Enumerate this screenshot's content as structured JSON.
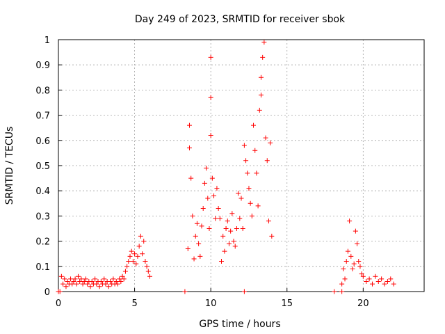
{
  "chart_data": {
    "type": "scatter",
    "title": "Day 249 of 2023, SRMTID for receiver sbok",
    "xlabel": "GPS time / hours",
    "ylabel": "SRMTID / TECUs",
    "xlim": [
      0,
      24
    ],
    "ylim": [
      0,
      1
    ],
    "x_ticks": [
      "0",
      "5",
      "10",
      "15",
      "20"
    ],
    "x_tick_values": [
      0,
      5,
      10,
      15,
      20
    ],
    "y_ticks": [
      "0",
      "0.1",
      "0.2",
      "0.3",
      "0.4",
      "0.5",
      "0.6",
      "0.7",
      "0.8",
      "0.9",
      "1"
    ],
    "y_tick_values": [
      0,
      0.1,
      0.2,
      0.3,
      0.4,
      0.5,
      0.6,
      0.7,
      0.8,
      0.9,
      1
    ],
    "grid": true,
    "marker": "+",
    "color": "#ff0000",
    "series": [
      {
        "name": "SRMTID",
        "points": [
          [
            0.1,
            0.0
          ],
          [
            0.2,
            0.06
          ],
          [
            0.3,
            0.03
          ],
          [
            0.4,
            0.05
          ],
          [
            0.5,
            0.02
          ],
          [
            0.6,
            0.04
          ],
          [
            0.7,
            0.03
          ],
          [
            0.8,
            0.05
          ],
          [
            0.9,
            0.03
          ],
          [
            1.0,
            0.04
          ],
          [
            1.1,
            0.05
          ],
          [
            1.2,
            0.03
          ],
          [
            1.3,
            0.06
          ],
          [
            1.4,
            0.04
          ],
          [
            1.5,
            0.05
          ],
          [
            1.6,
            0.03
          ],
          [
            1.7,
            0.04
          ],
          [
            1.8,
            0.05
          ],
          [
            1.9,
            0.03
          ],
          [
            2.0,
            0.04
          ],
          [
            2.1,
            0.02
          ],
          [
            2.2,
            0.04
          ],
          [
            2.3,
            0.03
          ],
          [
            2.4,
            0.05
          ],
          [
            2.5,
            0.03
          ],
          [
            2.6,
            0.04
          ],
          [
            2.7,
            0.02
          ],
          [
            2.8,
            0.04
          ],
          [
            2.9,
            0.03
          ],
          [
            3.0,
            0.05
          ],
          [
            3.1,
            0.03
          ],
          [
            3.2,
            0.04
          ],
          [
            3.3,
            0.02
          ],
          [
            3.4,
            0.04
          ],
          [
            3.5,
            0.03
          ],
          [
            3.6,
            0.05
          ],
          [
            3.7,
            0.03
          ],
          [
            3.8,
            0.04
          ],
          [
            3.9,
            0.03
          ],
          [
            4.0,
            0.05
          ],
          [
            4.1,
            0.04
          ],
          [
            4.2,
            0.06
          ],
          [
            4.3,
            0.05
          ],
          [
            4.4,
            0.08
          ],
          [
            4.5,
            0.1
          ],
          [
            4.6,
            0.12
          ],
          [
            4.7,
            0.14
          ],
          [
            4.8,
            0.16
          ],
          [
            4.9,
            0.12
          ],
          [
            5.0,
            0.15
          ],
          [
            5.1,
            0.11
          ],
          [
            5.2,
            0.14
          ],
          [
            5.3,
            0.18
          ],
          [
            5.4,
            0.22
          ],
          [
            5.5,
            0.15
          ],
          [
            5.6,
            0.2
          ],
          [
            5.7,
            0.12
          ],
          [
            5.8,
            0.1
          ],
          [
            5.9,
            0.08
          ],
          [
            6.0,
            0.06
          ],
          [
            0.0,
            0.0
          ],
          [
            8.3,
            0.0
          ],
          [
            12.2,
            0.0
          ],
          [
            18.1,
            0.0
          ],
          [
            18.6,
            0.0
          ],
          [
            8.5,
            0.17
          ],
          [
            8.6,
            0.66
          ],
          [
            8.6,
            0.57
          ],
          [
            8.7,
            0.45
          ],
          [
            8.8,
            0.3
          ],
          [
            8.9,
            0.13
          ],
          [
            9.0,
            0.22
          ],
          [
            9.1,
            0.27
          ],
          [
            9.2,
            0.19
          ],
          [
            9.3,
            0.14
          ],
          [
            9.4,
            0.26
          ],
          [
            9.5,
            0.33
          ],
          [
            9.6,
            0.43
          ],
          [
            9.7,
            0.49
          ],
          [
            9.8,
            0.37
          ],
          [
            9.9,
            0.25
          ],
          [
            10.0,
            0.77
          ],
          [
            10.0,
            0.93
          ],
          [
            10.0,
            0.62
          ],
          [
            10.1,
            0.45
          ],
          [
            10.2,
            0.38
          ],
          [
            10.3,
            0.29
          ],
          [
            10.4,
            0.41
          ],
          [
            10.5,
            0.33
          ],
          [
            10.6,
            0.29
          ],
          [
            10.7,
            0.12
          ],
          [
            10.8,
            0.22
          ],
          [
            10.9,
            0.16
          ],
          [
            11.0,
            0.25
          ],
          [
            11.1,
            0.28
          ],
          [
            11.2,
            0.19
          ],
          [
            11.3,
            0.24
          ],
          [
            11.4,
            0.31
          ],
          [
            11.5,
            0.2
          ],
          [
            11.6,
            0.18
          ],
          [
            11.7,
            0.25
          ],
          [
            11.8,
            0.39
          ],
          [
            11.9,
            0.29
          ],
          [
            12.0,
            0.37
          ],
          [
            12.1,
            0.25
          ],
          [
            12.2,
            0.58
          ],
          [
            12.3,
            0.52
          ],
          [
            12.4,
            0.47
          ],
          [
            12.5,
            0.41
          ],
          [
            12.6,
            0.35
          ],
          [
            12.7,
            0.3
          ],
          [
            12.8,
            0.66
          ],
          [
            12.9,
            0.56
          ],
          [
            13.0,
            0.47
          ],
          [
            13.1,
            0.34
          ],
          [
            13.2,
            0.72
          ],
          [
            13.3,
            0.78
          ],
          [
            13.3,
            0.85
          ],
          [
            13.4,
            0.93
          ],
          [
            13.5,
            0.99
          ],
          [
            13.6,
            0.61
          ],
          [
            13.7,
            0.52
          ],
          [
            13.8,
            0.28
          ],
          [
            13.9,
            0.59
          ],
          [
            14.0,
            0.22
          ],
          [
            18.6,
            0.03
          ],
          [
            18.7,
            0.09
          ],
          [
            18.8,
            0.05
          ],
          [
            18.9,
            0.12
          ],
          [
            19.0,
            0.16
          ],
          [
            19.1,
            0.28
          ],
          [
            19.2,
            0.14
          ],
          [
            19.3,
            0.09
          ],
          [
            19.4,
            0.11
          ],
          [
            19.5,
            0.24
          ],
          [
            19.6,
            0.19
          ],
          [
            19.7,
            0.12
          ],
          [
            19.8,
            0.1
          ],
          [
            19.9,
            0.07
          ],
          [
            20.0,
            0.06
          ],
          [
            20.2,
            0.04
          ],
          [
            20.4,
            0.05
          ],
          [
            20.6,
            0.03
          ],
          [
            20.8,
            0.06
          ],
          [
            21.0,
            0.04
          ],
          [
            21.2,
            0.05
          ],
          [
            21.4,
            0.03
          ],
          [
            21.6,
            0.04
          ],
          [
            21.8,
            0.05
          ],
          [
            22.0,
            0.03
          ]
        ]
      }
    ]
  }
}
